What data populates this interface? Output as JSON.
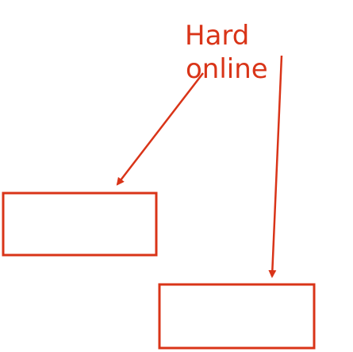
{
  "diagram": {
    "label_line1": "Hard",
    "label_line2": "online",
    "colors": {
      "stroke": "#d93418",
      "text": "#d93418",
      "background": "#ffffff"
    }
  }
}
